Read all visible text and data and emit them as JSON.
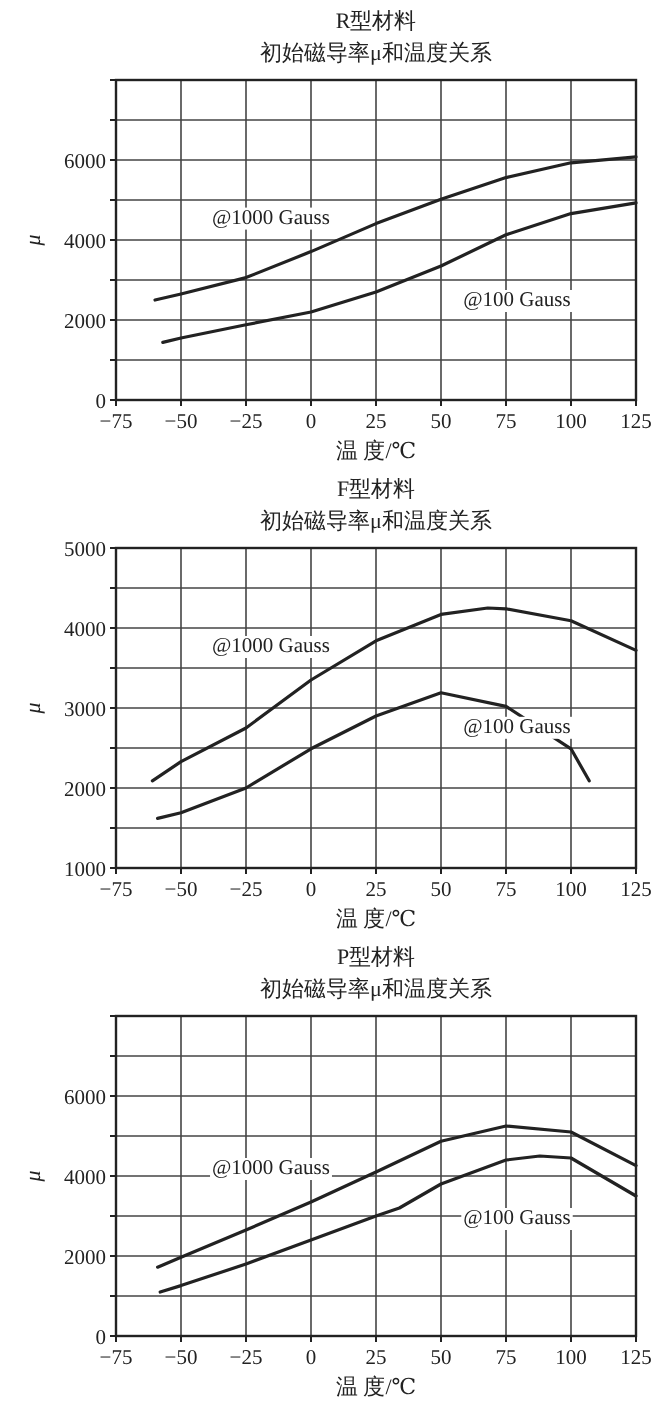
{
  "chart_data": [
    {
      "type": "line",
      "title": "R型材料",
      "subtitle": "初始磁导率μ和温度关系",
      "xlabel": "温 度/℃",
      "ylabel": "μ",
      "x": [
        -60,
        -50,
        -25,
        0,
        25,
        50,
        75,
        100,
        125
      ],
      "series": [
        {
          "name": "@1000 Gauss",
          "color": "#222222",
          "values": [
            2500,
            2650,
            3060,
            3710,
            4410,
            5020,
            5560,
            5930,
            6080
          ]
        },
        {
          "name": "@100 Gauss",
          "color": "#222222",
          "x": [
            -57,
            -50,
            -25,
            0,
            25,
            50,
            75,
            100,
            125
          ],
          "values": [
            1440,
            1550,
            1880,
            2200,
            2700,
            3350,
            4130,
            4660,
            4930
          ]
        }
      ],
      "xlim": [
        -75,
        125
      ],
      "xticks": [
        -75,
        -50,
        -25,
        0,
        25,
        50,
        75,
        100,
        125
      ],
      "ylim": [
        0,
        8000
      ],
      "yticks": [
        0,
        {
          "value": 1000,
          "label": null
        },
        2000,
        {
          "value": 3000,
          "label": null
        },
        4000,
        {
          "value": 5000,
          "label": null
        },
        6000,
        {
          "value": 7000,
          "label": null
        },
        {
          "value": 8000,
          "label": null
        }
      ],
      "grid": true,
      "line_style": "solid"
    },
    {
      "type": "line",
      "title": "F型材料",
      "subtitle": "初始磁导率μ和温度关系",
      "xlabel": "温 度/℃",
      "ylabel": "μ",
      "x": [
        -61,
        -50,
        -25,
        0,
        25,
        50,
        68,
        75,
        100,
        125
      ],
      "series": [
        {
          "name": "@1000 Gauss",
          "color": "#222222",
          "values": [
            2090,
            2330,
            2750,
            3350,
            3840,
            4170,
            4250,
            4240,
            4090,
            3720
          ]
        },
        {
          "name": "@100 Gauss",
          "color": "#222222",
          "x": [
            -59,
            -50,
            -25,
            0,
            25,
            50,
            75,
            100,
            107
          ],
          "values": [
            1620,
            1690,
            2000,
            2490,
            2900,
            3190,
            3020,
            2490,
            2090
          ]
        }
      ],
      "xlim": [
        -75,
        125
      ],
      "xticks": [
        -75,
        -50,
        -25,
        0,
        25,
        50,
        75,
        100,
        125
      ],
      "ylim": [
        1000,
        5000
      ],
      "yticks": [
        1000,
        {
          "value": 1500,
          "label": null
        },
        2000,
        {
          "value": 2500,
          "label": null
        },
        3000,
        {
          "value": 3500,
          "label": null
        },
        4000,
        {
          "value": 4500,
          "label": null
        },
        5000
      ],
      "grid": true,
      "line_style": "solid"
    },
    {
      "type": "line",
      "title": "P型材料",
      "subtitle": "初始磁导率μ和温度关系",
      "xlabel": "温 度/℃",
      "ylabel": "μ",
      "x": [
        -59,
        -50,
        -25,
        0,
        25,
        50,
        75,
        100,
        125
      ],
      "series": [
        {
          "name": "@1000 Gauss",
          "color": "#222222",
          "values": [
            1720,
            1970,
            2650,
            3350,
            4100,
            4870,
            5250,
            5100,
            4260
          ]
        },
        {
          "name": "@100 Gauss",
          "color": "#222222",
          "x": [
            -58,
            -50,
            -25,
            0,
            25,
            34,
            50,
            75,
            88,
            100,
            125
          ],
          "values": [
            1100,
            1260,
            1800,
            2400,
            3000,
            3200,
            3800,
            4400,
            4500,
            4450,
            3500
          ]
        }
      ],
      "xlim": [
        -75,
        125
      ],
      "xticks": [
        -75,
        -50,
        -25,
        0,
        25,
        50,
        75,
        100,
        125
      ],
      "ylim": [
        0,
        8000
      ],
      "yticks": [
        0,
        {
          "value": 1000,
          "label": null
        },
        2000,
        {
          "value": 3000,
          "label": null
        },
        4000,
        {
          "value": 5000,
          "label": null
        },
        6000,
        {
          "value": 7000,
          "label": null
        },
        {
          "value": 8000,
          "label": null
        }
      ],
      "grid": true,
      "line_style": "solid"
    }
  ]
}
